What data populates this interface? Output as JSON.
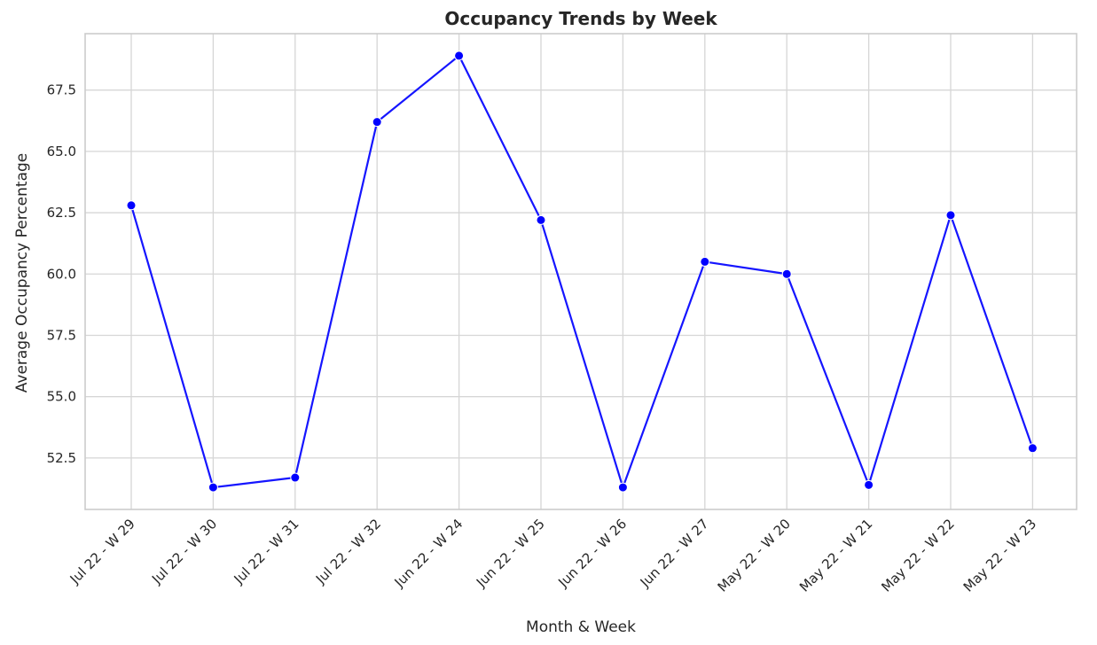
{
  "chart_data": {
    "type": "line",
    "title": "Occupancy Trends by Week",
    "xlabel": "Month & Week",
    "ylabel": "Average Occupancy Percentage",
    "categories": [
      "Jul 22 - W 29",
      "Jul 22 - W 30",
      "Jul 22 - W 31",
      "Jul 22 - W 32",
      "Jun 22 - W 24",
      "Jun 22 - W 25",
      "Jun 22 - W 26",
      "Jun 22 - W 27",
      "May 22 - W 20",
      "May 22 - W 21",
      "May 22 - W 22",
      "May 22 - W 23"
    ],
    "values": [
      62.8,
      51.3,
      51.7,
      66.2,
      68.9,
      62.2,
      51.3,
      60.5,
      60.0,
      51.4,
      62.4,
      52.9
    ],
    "yticks": [
      "52.5",
      "55.0",
      "57.5",
      "60.0",
      "62.5",
      "65.0",
      "67.5"
    ],
    "ylim": [
      50.4,
      69.8
    ],
    "grid": true,
    "line_color": "#1515ff",
    "marker_color": "#0000ff"
  }
}
